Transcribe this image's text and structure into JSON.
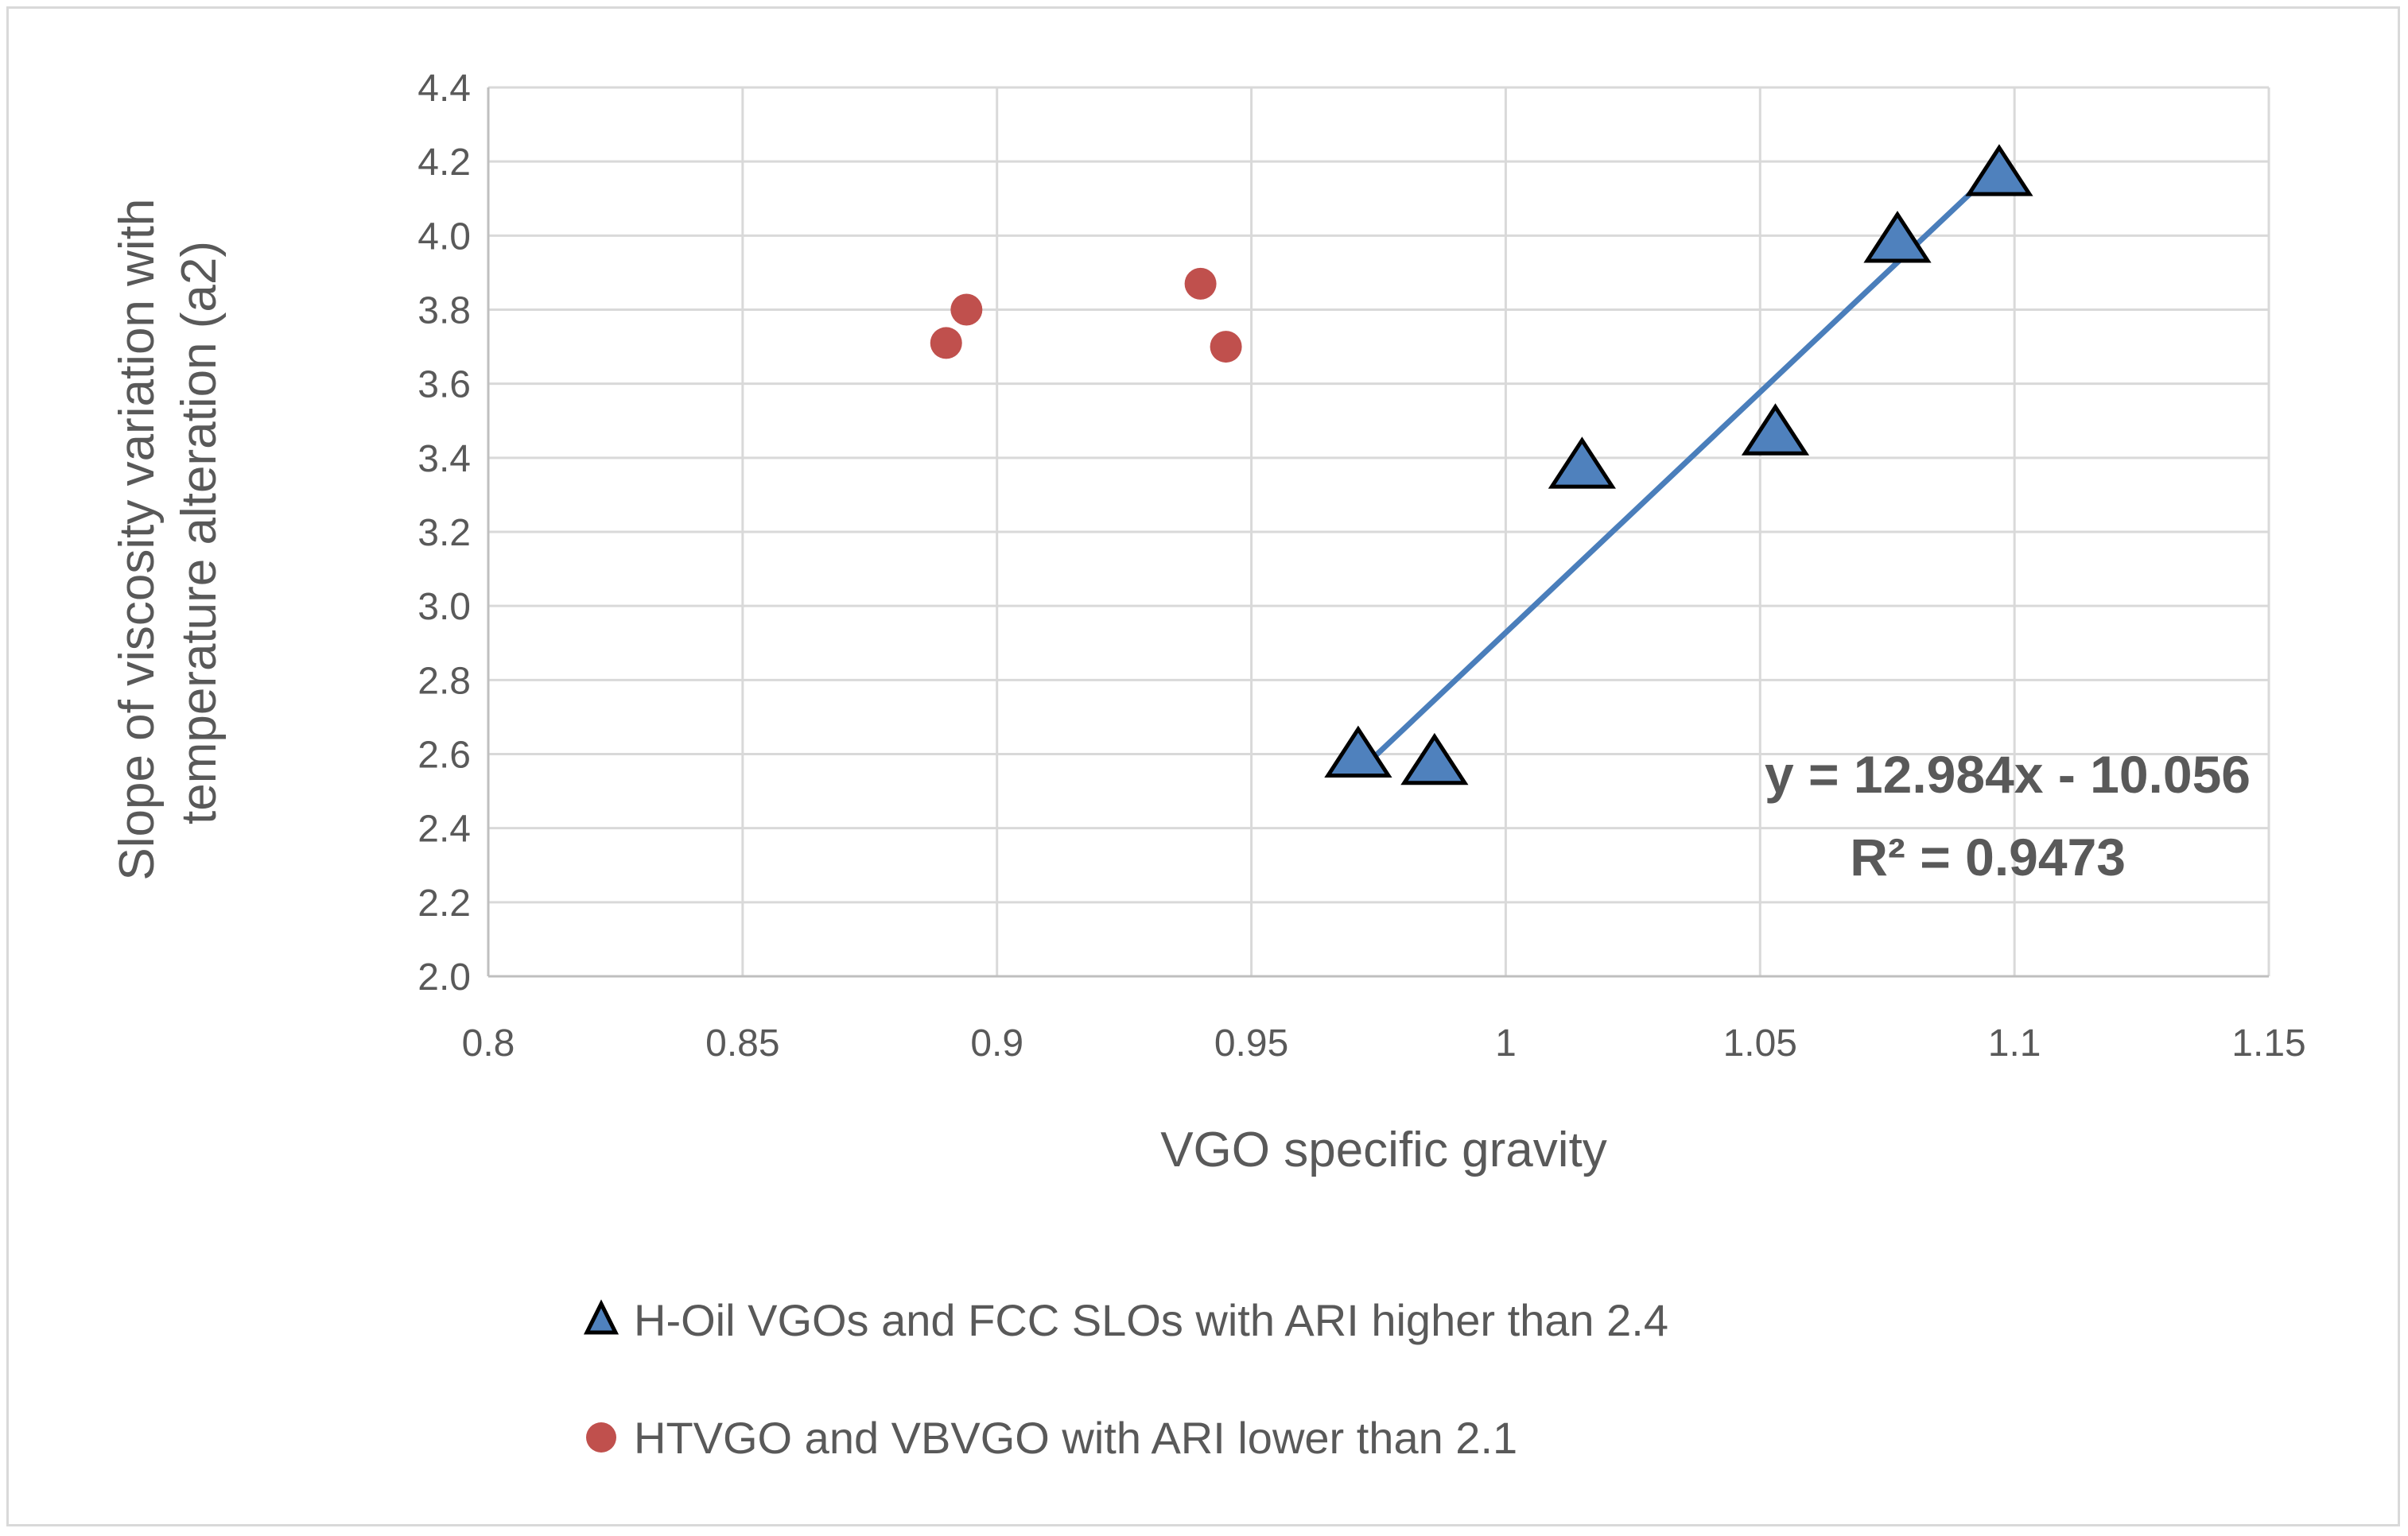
{
  "chart_data": {
    "type": "scatter",
    "title": "",
    "xlabel": "VGO specific gravity",
    "ylabel_line1": "Slope of viscosity variation with",
    "ylabel_line2": "temperature alteration (a2)",
    "xlim": [
      0.8,
      1.15
    ],
    "ylim": [
      2.0,
      4.4
    ],
    "x_ticks": [
      0.8,
      0.85,
      0.9,
      0.95,
      1.0,
      1.05,
      1.1,
      1.15
    ],
    "x_tick_labels": [
      "0.8",
      "0.85",
      "0.9",
      "0.95",
      "1",
      "1.05",
      "1.1",
      "1.15"
    ],
    "y_ticks": [
      2.0,
      2.2,
      2.4,
      2.6,
      2.8,
      3.0,
      3.2,
      3.4,
      3.6,
      3.8,
      4.0,
      4.2,
      4.4
    ],
    "y_tick_labels": [
      "2.0",
      "2.2",
      "2.4",
      "2.6",
      "2.8",
      "3.0",
      "3.2",
      "3.4",
      "3.6",
      "3.8",
      "4.0",
      "4.2",
      "4.4"
    ],
    "grid": true,
    "legend_position": "bottom",
    "series": [
      {
        "name": "H-Oil VGOs and FCC SLOs with ARI higher than 2.4",
        "marker": "triangle",
        "color": "#4f81bd",
        "x": [
          0.971,
          0.986,
          1.015,
          1.053,
          1.077,
          1.097
        ],
        "y": [
          2.59,
          2.57,
          3.37,
          3.46,
          3.98,
          4.16
        ]
      },
      {
        "name": "HTVGO and VBVGO with ARI lower than 2.1",
        "marker": "circle",
        "color": "#c0504d",
        "x": [
          0.89,
          0.894,
          0.94,
          0.945
        ],
        "y": [
          3.71,
          3.8,
          3.87,
          3.7
        ]
      }
    ],
    "trendline": {
      "series": 0,
      "slope": 12.984,
      "intercept": -10.056,
      "x_range": [
        0.971,
        1.097
      ],
      "color": "#4a7ebb",
      "equation": "y = 12.984x - 10.056",
      "r2": "R² = 0.9473"
    }
  },
  "colors": {
    "grid": "#d9d9d9",
    "axis": "#bfbfbf",
    "marker_stroke": "#000000"
  }
}
